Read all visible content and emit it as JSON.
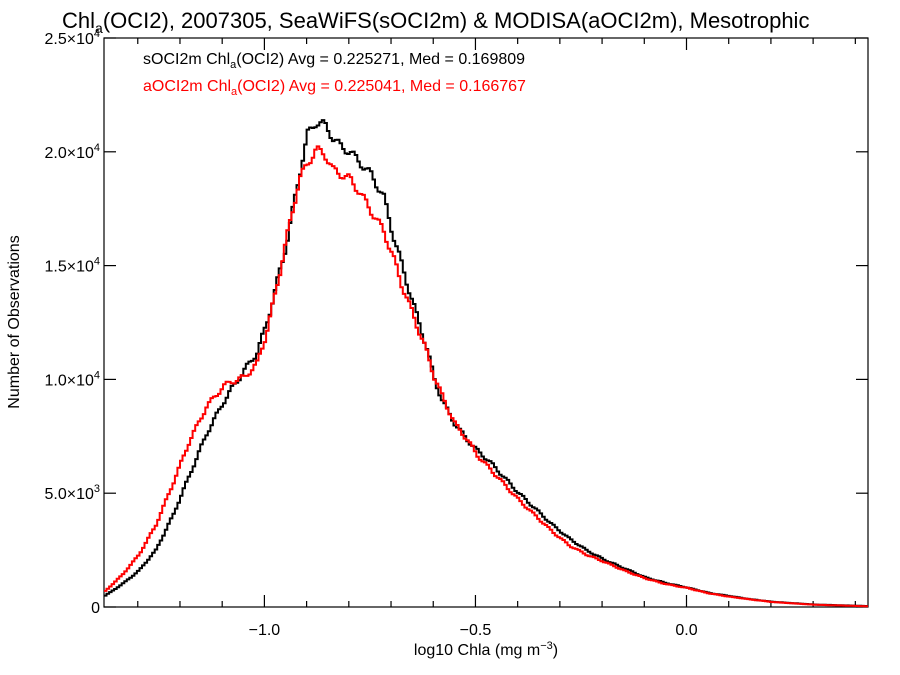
{
  "chart_data": {
    "type": "line",
    "title_parts": {
      "pre": "Chl",
      "sub": "a",
      "post": "(OCI2), 2007305, SeaWiFS(sOCI2m) & MODISA(aOCI2m), Mesotrophic"
    },
    "xlabel_parts": {
      "pre": "log10 Chla (mg m",
      "sup": "−3",
      "post": ")"
    },
    "ylabel": "Number of Observations",
    "xlim": [
      -1.38,
      0.43
    ],
    "ylim": [
      0,
      25000
    ],
    "x_ticks": [
      {
        "value": -1.0,
        "label": "−1.0"
      },
      {
        "value": -0.5,
        "label": "−0.5"
      },
      {
        "value": 0.0,
        "label": "0.0"
      }
    ],
    "y_ticks": [
      {
        "value": 0,
        "mant": "0",
        "exp": ""
      },
      {
        "value": 5000,
        "mant": "5.0×10",
        "exp": "3"
      },
      {
        "value": 10000,
        "mant": "1.0×10",
        "exp": "4"
      },
      {
        "value": 15000,
        "mant": "1.5×10",
        "exp": "4"
      },
      {
        "value": 20000,
        "mant": "2.0×10",
        "exp": "4"
      },
      {
        "value": 25000,
        "mant": "2.5×10",
        "exp": "4"
      }
    ],
    "series": [
      {
        "name": "sOCI2m",
        "color": "#000000",
        "legend": {
          "pre": "sOCI2m Chl",
          "sub": "a",
          "post": "(OCI2) Avg = 0.225271, Med = 0.169809"
        },
        "x": [
          -1.38,
          -1.34,
          -1.3,
          -1.26,
          -1.22,
          -1.18,
          -1.14,
          -1.1,
          -1.08,
          -1.05,
          -1.02,
          -1.0,
          -0.98,
          -0.95,
          -0.92,
          -0.9,
          -0.88,
          -0.86,
          -0.84,
          -0.82,
          -0.8,
          -0.78,
          -0.75,
          -0.72,
          -0.7,
          -0.68,
          -0.65,
          -0.62,
          -0.6,
          -0.58,
          -0.55,
          -0.52,
          -0.5,
          -0.47,
          -0.44,
          -0.4,
          -0.36,
          -0.32,
          -0.28,
          -0.24,
          -0.2,
          -0.15,
          -0.1,
          -0.05,
          0.0,
          0.05,
          0.1,
          0.15,
          0.2,
          0.3,
          0.43
        ],
        "values": [
          500,
          1000,
          1600,
          2500,
          4000,
          5800,
          7600,
          9000,
          9600,
          10400,
          11200,
          12300,
          13700,
          16000,
          19000,
          20800,
          21300,
          21200,
          20600,
          20200,
          20000,
          19600,
          19000,
          18000,
          16500,
          15200,
          13300,
          11500,
          10000,
          9000,
          8000,
          7300,
          6900,
          6400,
          5800,
          5000,
          4300,
          3600,
          3000,
          2500,
          2100,
          1700,
          1300,
          1050,
          850,
          620,
          480,
          340,
          230,
          110,
          40
        ]
      },
      {
        "name": "aOCI2m",
        "color": "#ff0000",
        "legend": {
          "pre": "aOCI2m Chl",
          "sub": "a",
          "post": "(OCI2) Avg = 0.225041, Med = 0.166767"
        },
        "x": [
          -1.38,
          -1.34,
          -1.3,
          -1.26,
          -1.22,
          -1.18,
          -1.14,
          -1.1,
          -1.08,
          -1.05,
          -1.02,
          -1.0,
          -0.98,
          -0.95,
          -0.92,
          -0.9,
          -0.88,
          -0.86,
          -0.84,
          -0.82,
          -0.8,
          -0.78,
          -0.75,
          -0.72,
          -0.7,
          -0.68,
          -0.65,
          -0.62,
          -0.6,
          -0.58,
          -0.55,
          -0.52,
          -0.5,
          -0.47,
          -0.44,
          -0.4,
          -0.36,
          -0.32,
          -0.28,
          -0.24,
          -0.2,
          -0.15,
          -0.1,
          -0.05,
          0.0,
          0.05,
          0.1,
          0.15,
          0.2,
          0.3,
          0.43
        ],
        "values": [
          700,
          1400,
          2300,
          3600,
          5400,
          7300,
          8800,
          9700,
          9900,
          10100,
          10700,
          11900,
          13500,
          16200,
          18800,
          19500,
          20100,
          19900,
          19200,
          19000,
          18800,
          18300,
          17400,
          16500,
          15500,
          14300,
          12800,
          11300,
          10100,
          9200,
          8000,
          7300,
          6700,
          6100,
          5500,
          4700,
          4000,
          3300,
          2700,
          2300,
          2000,
          1600,
          1250,
          1000,
          830,
          600,
          450,
          330,
          220,
          100,
          30
        ]
      }
    ]
  }
}
